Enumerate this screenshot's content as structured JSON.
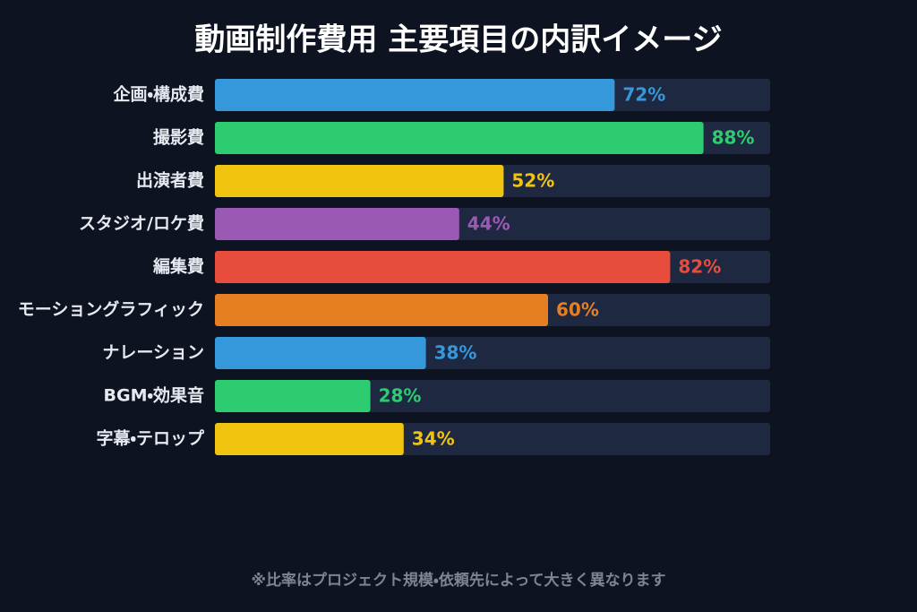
{
  "chart_data": {
    "type": "bar",
    "orientation": "horizontal",
    "title": "動画制作費用 主要項目の内訳イメージ",
    "categories": [
      "企画・構成費",
      "撮影費",
      "出演者費",
      "スタジオ/ロケ費",
      "編集費",
      "モーショングラフィック",
      "ナレーション",
      "BGM・効果音",
      "字幕・テロップ"
    ],
    "values": [
      72,
      88,
      52,
      44,
      82,
      60,
      38,
      28,
      34
    ],
    "value_labels": [
      "72%",
      "88%",
      "52%",
      "44%",
      "82%",
      "60%",
      "38%",
      "28%",
      "34%"
    ],
    "colors": [
      "#3498db",
      "#2ecc71",
      "#f1c40f",
      "#9b59b6",
      "#e74c3c",
      "#e67e22",
      "#3498db",
      "#2ecc71",
      "#f1c40f"
    ],
    "xlim": [
      0,
      100
    ],
    "note": "※比率はプロジェクト規模・依頼先によって大きく異なります"
  }
}
